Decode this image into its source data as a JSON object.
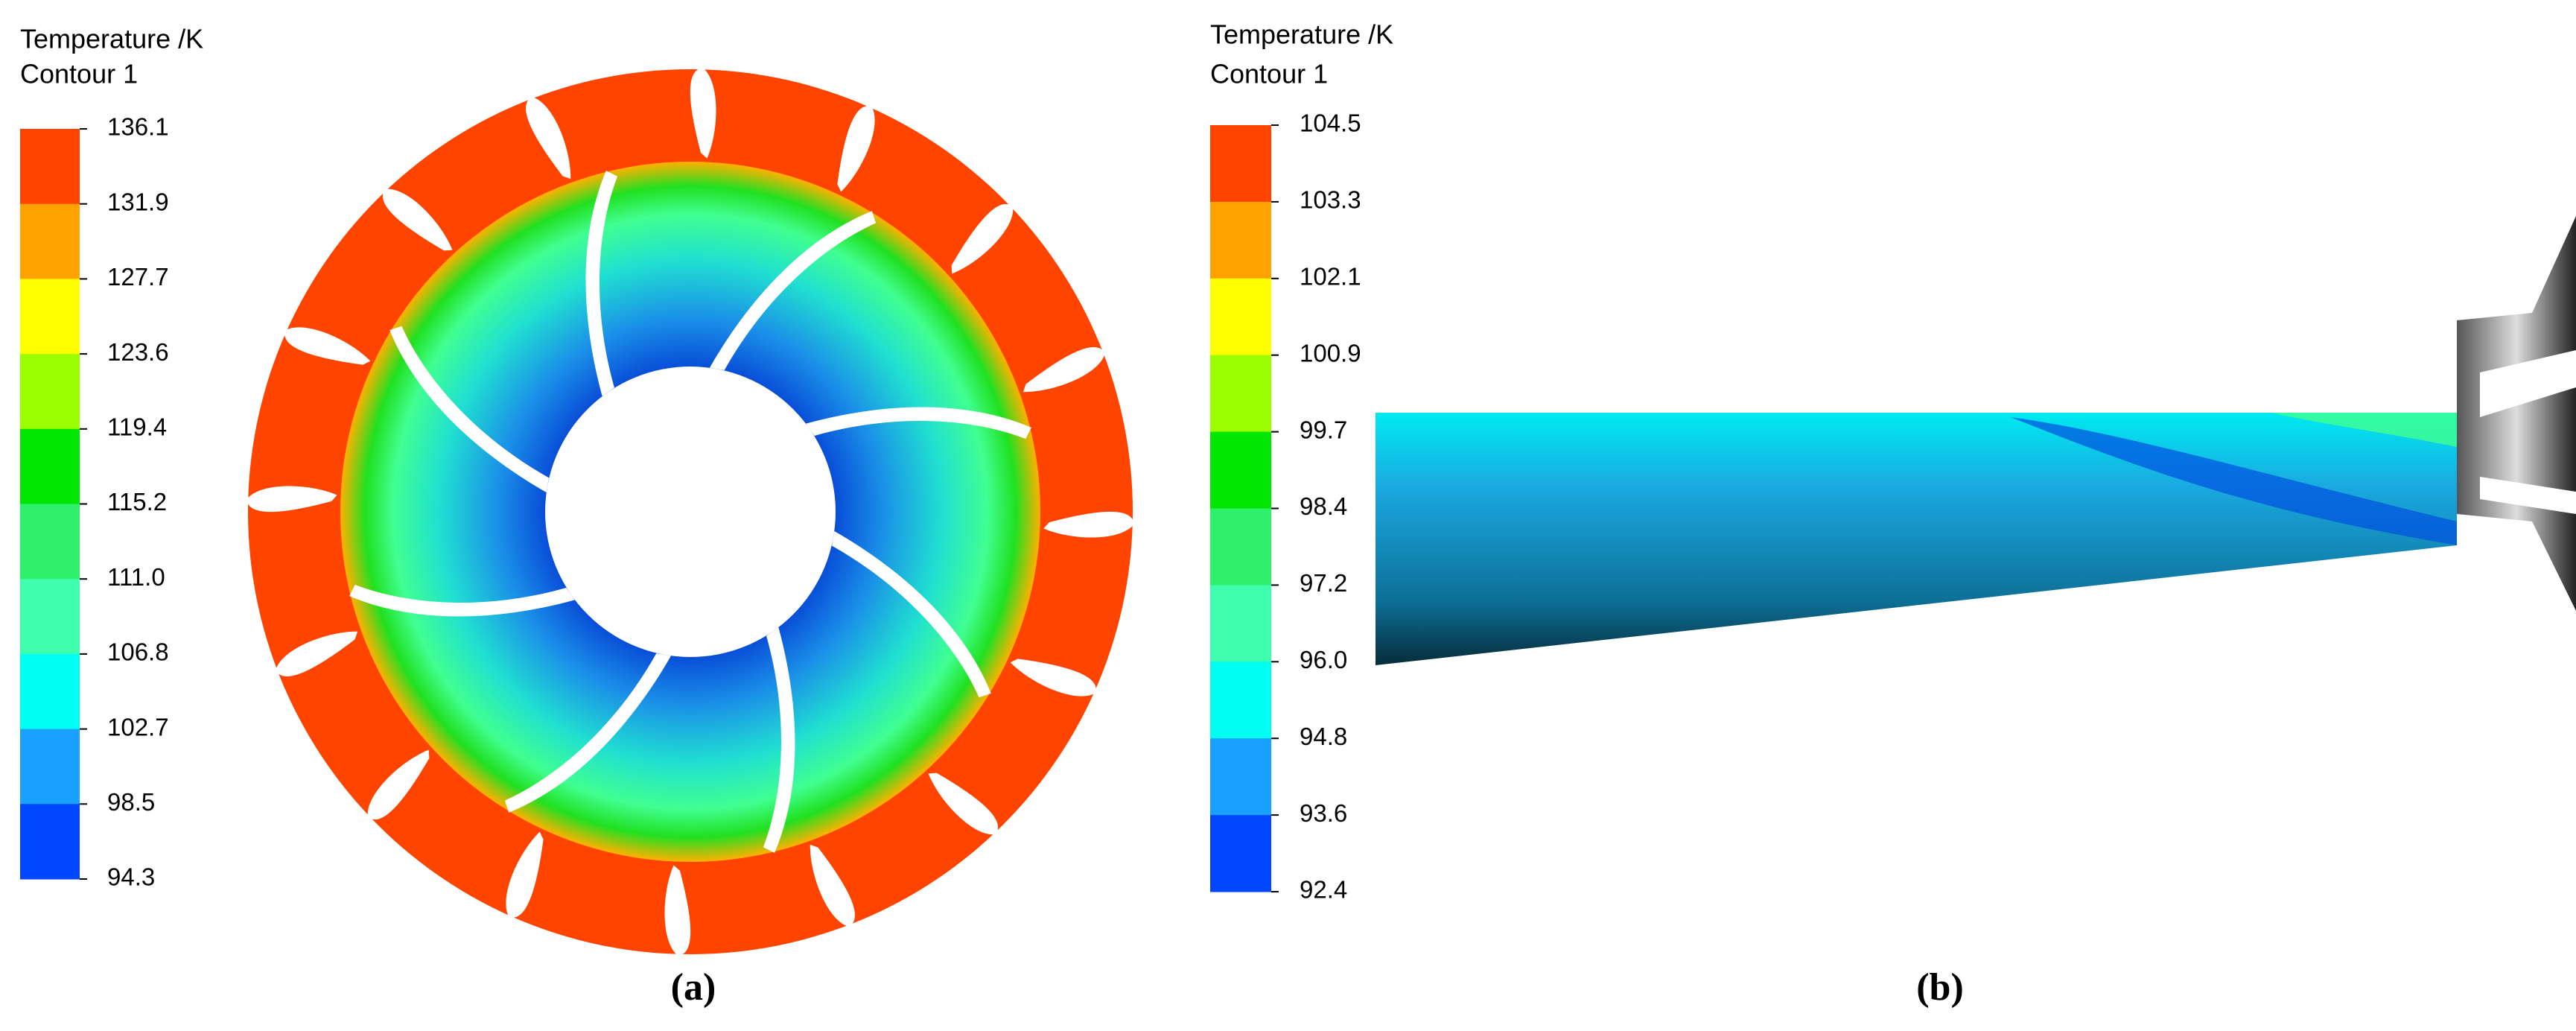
{
  "panels": [
    {
      "legend_title": "Temperature /K",
      "legend_subtitle": "Contour 1",
      "levels": [
        "136.1",
        "131.9",
        "127.7",
        "123.6",
        "119.4",
        "115.2",
        "111.0",
        "106.8",
        "102.7",
        "98.5",
        "94.3"
      ],
      "colors": [
        "#ff4400",
        "#ffa200",
        "#ffff00",
        "#9cff00",
        "#00e600",
        "#2ef06a",
        "#3dffae",
        "#00fff0",
        "#1aa0ff",
        "#0047ff"
      ],
      "label": "(a)"
    },
    {
      "legend_title": "Temperature /K",
      "legend_subtitle": "Contour 1",
      "levels": [
        "104.5",
        "103.3",
        "102.1",
        "100.9",
        "99.7",
        "98.4",
        "97.2",
        "96.0",
        "94.8",
        "93.6",
        "92.4"
      ],
      "colors": [
        "#ff4400",
        "#ffa200",
        "#ffff00",
        "#9cff00",
        "#00e600",
        "#2ef06a",
        "#3dffae",
        "#00fff0",
        "#1aa0ff",
        "#0047ff"
      ],
      "label": "(b)"
    }
  ]
}
